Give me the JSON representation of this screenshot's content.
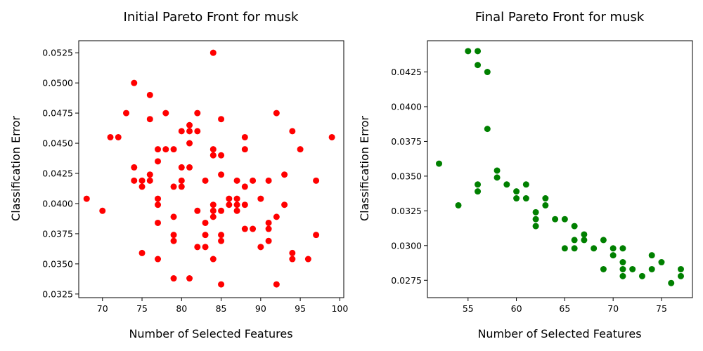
{
  "chart_data": [
    {
      "type": "scatter",
      "title": "Initial Pareto Front for musk",
      "xlabel": "Number of Selected Features",
      "ylabel": "Classification Error",
      "xlim": [
        67,
        100.5
      ],
      "ylim": [
        0.0322,
        0.0535
      ],
      "xticks": [
        70,
        75,
        80,
        85,
        90,
        95,
        100
      ],
      "yticks": [
        0.0325,
        0.035,
        0.0375,
        0.04,
        0.0425,
        0.045,
        0.0475,
        0.05,
        0.0525
      ],
      "color": "#ff0000",
      "grid": false,
      "points": [
        [
          68,
          0.0404
        ],
        [
          70,
          0.0394
        ],
        [
          71,
          0.0455
        ],
        [
          72,
          0.0455
        ],
        [
          73,
          0.0475
        ],
        [
          74,
          0.05
        ],
        [
          74,
          0.043
        ],
        [
          74,
          0.0419
        ],
        [
          75,
          0.0419
        ],
        [
          75,
          0.0414
        ],
        [
          75,
          0.0359
        ],
        [
          76,
          0.049
        ],
        [
          76,
          0.047
        ],
        [
          76,
          0.0424
        ],
        [
          76,
          0.0419
        ],
        [
          77,
          0.0445
        ],
        [
          77,
          0.0435
        ],
        [
          77,
          0.0404
        ],
        [
          77,
          0.0399
        ],
        [
          77,
          0.0384
        ],
        [
          77,
          0.0354
        ],
        [
          78,
          0.0475
        ],
        [
          78,
          0.0445
        ],
        [
          79,
          0.0445
        ],
        [
          79,
          0.0414
        ],
        [
          79,
          0.0389
        ],
        [
          79,
          0.0374
        ],
        [
          79,
          0.0369
        ],
        [
          79,
          0.0338
        ],
        [
          80,
          0.046
        ],
        [
          80,
          0.043
        ],
        [
          80,
          0.0419
        ],
        [
          80,
          0.0414
        ],
        [
          81,
          0.0465
        ],
        [
          81,
          0.046
        ],
        [
          81,
          0.045
        ],
        [
          81,
          0.043
        ],
        [
          81,
          0.0338
        ],
        [
          82,
          0.0475
        ],
        [
          82,
          0.046
        ],
        [
          82,
          0.0394
        ],
        [
          82,
          0.0364
        ],
        [
          83,
          0.0419
        ],
        [
          83,
          0.0384
        ],
        [
          83,
          0.0374
        ],
        [
          83,
          0.0364
        ],
        [
          84,
          0.0525
        ],
        [
          84,
          0.0445
        ],
        [
          84,
          0.044
        ],
        [
          84,
          0.0399
        ],
        [
          84,
          0.0394
        ],
        [
          84,
          0.0389
        ],
        [
          84,
          0.0354
        ],
        [
          85,
          0.047
        ],
        [
          85,
          0.044
        ],
        [
          85,
          0.0424
        ],
        [
          85,
          0.0394
        ],
        [
          85,
          0.0374
        ],
        [
          85,
          0.0369
        ],
        [
          85,
          0.0333
        ],
        [
          86,
          0.0404
        ],
        [
          86,
          0.0399
        ],
        [
          87,
          0.0419
        ],
        [
          87,
          0.0404
        ],
        [
          87,
          0.0399
        ],
        [
          87,
          0.0394
        ],
        [
          88,
          0.0455
        ],
        [
          88,
          0.0445
        ],
        [
          88,
          0.0414
        ],
        [
          88,
          0.0399
        ],
        [
          88,
          0.0379
        ],
        [
          89,
          0.0419
        ],
        [
          89,
          0.0379
        ],
        [
          90,
          0.0404
        ],
        [
          90,
          0.0364
        ],
        [
          91,
          0.0419
        ],
        [
          91,
          0.0384
        ],
        [
          91,
          0.0379
        ],
        [
          91,
          0.0369
        ],
        [
          92,
          0.0475
        ],
        [
          92,
          0.0389
        ],
        [
          92,
          0.0333
        ],
        [
          93,
          0.0424
        ],
        [
          93,
          0.0399
        ],
        [
          94,
          0.046
        ],
        [
          94,
          0.0359
        ],
        [
          94,
          0.0354
        ],
        [
          95,
          0.0445
        ],
        [
          96,
          0.0354
        ],
        [
          97,
          0.0419
        ],
        [
          97,
          0.0374
        ],
        [
          99,
          0.0455
        ]
      ]
    },
    {
      "type": "scatter",
      "title": "Final Pareto Front for musk",
      "xlabel": "Number of Selected Features",
      "ylabel": "Classification Error",
      "xlim": [
        50.8,
        78.2
      ],
      "ylim": [
        0.02625,
        0.04475
      ],
      "xticks": [
        55,
        60,
        65,
        70,
        75
      ],
      "yticks": [
        0.0275,
        0.03,
        0.0325,
        0.035,
        0.0375,
        0.04,
        0.0425
      ],
      "color": "#008000",
      "grid": false,
      "points": [
        [
          52,
          0.0359
        ],
        [
          54,
          0.0329
        ],
        [
          55,
          0.044
        ],
        [
          56,
          0.044
        ],
        [
          56,
          0.043
        ],
        [
          56,
          0.0344
        ],
        [
          56,
          0.0339
        ],
        [
          57,
          0.0425
        ],
        [
          57,
          0.0384
        ],
        [
          58,
          0.0354
        ],
        [
          58,
          0.0349
        ],
        [
          59,
          0.0344
        ],
        [
          60,
          0.0339
        ],
        [
          60,
          0.0334
        ],
        [
          61,
          0.0344
        ],
        [
          61,
          0.0334
        ],
        [
          62,
          0.0324
        ],
        [
          62,
          0.0319
        ],
        [
          62,
          0.0314
        ],
        [
          63,
          0.0334
        ],
        [
          63,
          0.0329
        ],
        [
          64,
          0.0319
        ],
        [
          65,
          0.0319
        ],
        [
          65,
          0.0298
        ],
        [
          66,
          0.0314
        ],
        [
          66,
          0.0304
        ],
        [
          66,
          0.0298
        ],
        [
          67,
          0.0308
        ],
        [
          67,
          0.0304
        ],
        [
          68,
          0.0298
        ],
        [
          69,
          0.0304
        ],
        [
          69,
          0.0283
        ],
        [
          70,
          0.0298
        ],
        [
          70,
          0.0293
        ],
        [
          71,
          0.0298
        ],
        [
          71,
          0.0288
        ],
        [
          71,
          0.0283
        ],
        [
          71,
          0.0278
        ],
        [
          72,
          0.0283
        ],
        [
          73,
          0.0278
        ],
        [
          74,
          0.0293
        ],
        [
          74,
          0.0283
        ],
        [
          75,
          0.0288
        ],
        [
          76,
          0.0273
        ],
        [
          77,
          0.0283
        ],
        [
          77,
          0.0278
        ]
      ]
    }
  ]
}
